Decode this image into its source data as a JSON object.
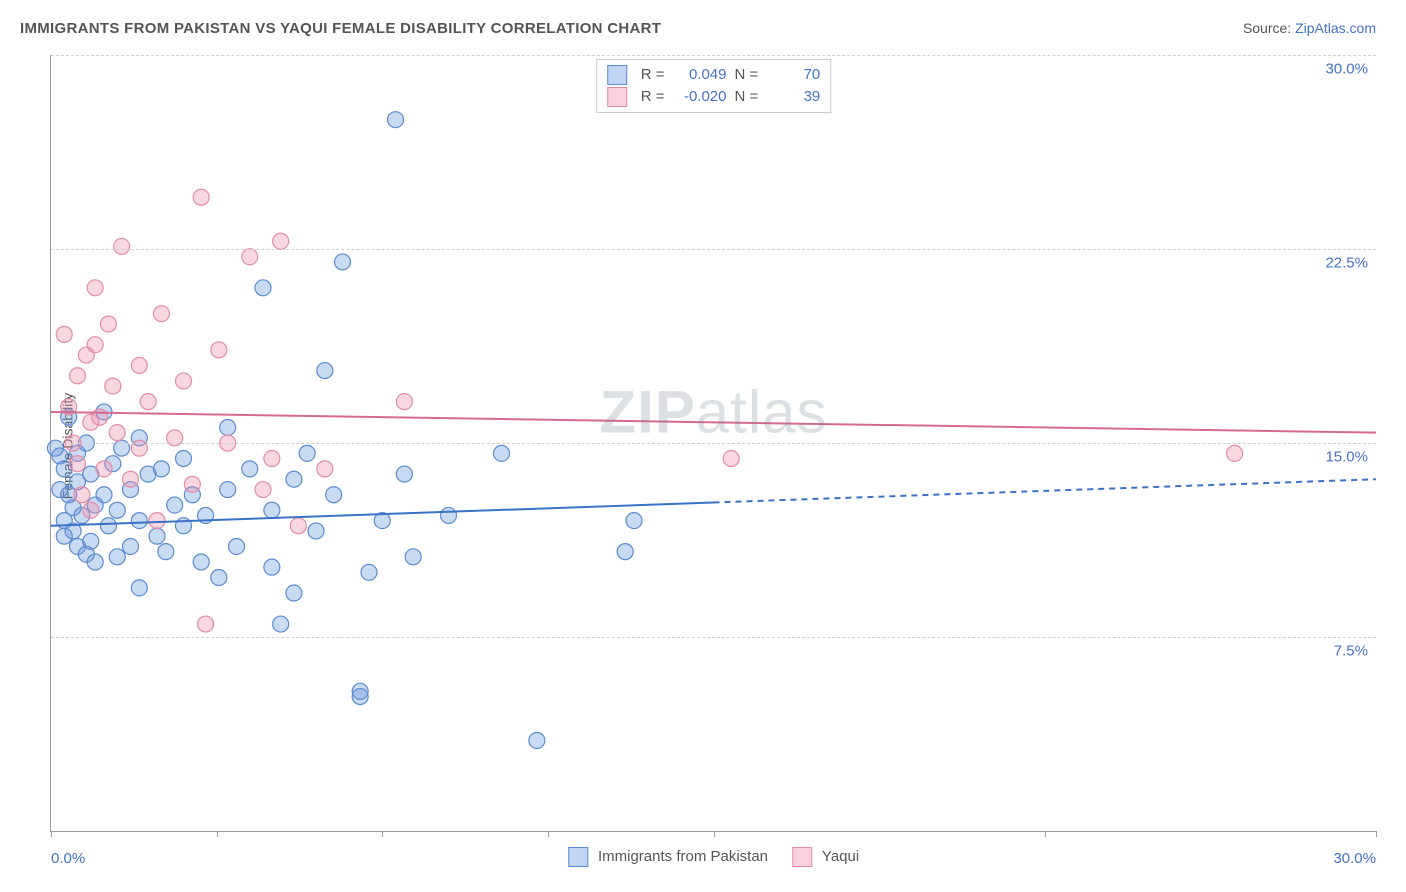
{
  "title": "IMMIGRANTS FROM PAKISTAN VS YAQUI FEMALE DISABILITY CORRELATION CHART",
  "source_label": "Source: ",
  "source_link_text": "ZipAtlas.com",
  "ylabel": "Female Disability",
  "watermark_bold": "ZIP",
  "watermark_rest": "atlas",
  "chart": {
    "type": "scatter",
    "xlim": [
      0,
      30
    ],
    "ylim": [
      0,
      30
    ],
    "x_axis_labels": {
      "left": "0.0%",
      "right": "30.0%"
    },
    "y_gridlines": [
      7.5,
      15.0,
      22.5,
      30.0
    ],
    "y_tick_labels": [
      "7.5%",
      "15.0%",
      "22.5%",
      "30.0%"
    ],
    "x_ticks": [
      0,
      3.75,
      7.5,
      11.25,
      15.0,
      22.5,
      30.0
    ],
    "grid_color": "#d0d0d0",
    "background_color": "#ffffff",
    "axis_color": "#999999",
    "label_color": "#4472c4",
    "marker_radius": 8,
    "marker_stroke_width": 1.2,
    "trend_line_width": 2,
    "series": [
      {
        "name": "Immigrants from Pakistan",
        "legend_name": "Immigrants from Pakistan",
        "R": "0.049",
        "N": "70",
        "fill": "rgba(100,150,220,0.35)",
        "stroke": "#5b8bd0",
        "line_color": "#3972c6",
        "trend_y_start": 11.8,
        "trend_y_end": 13.6,
        "solid_until_x": 15.0,
        "points": [
          [
            0.1,
            14.8
          ],
          [
            0.2,
            14.5
          ],
          [
            0.2,
            13.2
          ],
          [
            0.3,
            14.0
          ],
          [
            0.3,
            12.0
          ],
          [
            0.3,
            11.4
          ],
          [
            0.4,
            16.0
          ],
          [
            0.4,
            13.0
          ],
          [
            0.5,
            12.5
          ],
          [
            0.5,
            11.6
          ],
          [
            0.6,
            14.6
          ],
          [
            0.6,
            13.5
          ],
          [
            0.6,
            11.0
          ],
          [
            0.7,
            12.2
          ],
          [
            0.8,
            15.0
          ],
          [
            0.8,
            10.7
          ],
          [
            0.9,
            13.8
          ],
          [
            0.9,
            11.2
          ],
          [
            1.0,
            12.6
          ],
          [
            1.0,
            10.4
          ],
          [
            1.2,
            16.2
          ],
          [
            1.2,
            13.0
          ],
          [
            1.3,
            11.8
          ],
          [
            1.4,
            14.2
          ],
          [
            1.5,
            12.4
          ],
          [
            1.5,
            10.6
          ],
          [
            1.6,
            14.8
          ],
          [
            1.8,
            13.2
          ],
          [
            1.8,
            11.0
          ],
          [
            2.0,
            15.2
          ],
          [
            2.0,
            12.0
          ],
          [
            2.0,
            9.4
          ],
          [
            2.2,
            13.8
          ],
          [
            2.4,
            11.4
          ],
          [
            2.5,
            14.0
          ],
          [
            2.6,
            10.8
          ],
          [
            2.8,
            12.6
          ],
          [
            3.0,
            14.4
          ],
          [
            3.0,
            11.8
          ],
          [
            3.2,
            13.0
          ],
          [
            3.4,
            10.4
          ],
          [
            3.5,
            12.2
          ],
          [
            3.8,
            9.8
          ],
          [
            4.0,
            15.6
          ],
          [
            4.0,
            13.2
          ],
          [
            4.2,
            11.0
          ],
          [
            4.5,
            14.0
          ],
          [
            4.8,
            21.0
          ],
          [
            5.0,
            12.4
          ],
          [
            5.0,
            10.2
          ],
          [
            5.2,
            8.0
          ],
          [
            5.5,
            13.6
          ],
          [
            5.5,
            9.2
          ],
          [
            5.8,
            14.6
          ],
          [
            6.0,
            11.6
          ],
          [
            6.2,
            17.8
          ],
          [
            6.4,
            13.0
          ],
          [
            6.6,
            22.0
          ],
          [
            7.0,
            5.2
          ],
          [
            7.0,
            5.4
          ],
          [
            7.2,
            10.0
          ],
          [
            7.5,
            12.0
          ],
          [
            7.8,
            27.5
          ],
          [
            8.0,
            13.8
          ],
          [
            8.2,
            10.6
          ],
          [
            9.0,
            12.2
          ],
          [
            10.2,
            14.6
          ],
          [
            11.0,
            3.5
          ],
          [
            13.0,
            10.8
          ],
          [
            13.2,
            12.0
          ]
        ]
      },
      {
        "name": "Yaqui",
        "legend_name": "Yaqui",
        "R": "-0.020",
        "N": "39",
        "fill": "rgba(235,140,170,0.35)",
        "stroke": "#e38ca8",
        "line_color": "#d46a8e",
        "trend_y_start": 16.2,
        "trend_y_end": 15.4,
        "solid_until_x": 30.0,
        "points": [
          [
            0.3,
            19.2
          ],
          [
            0.4,
            16.4
          ],
          [
            0.5,
            15.0
          ],
          [
            0.6,
            17.6
          ],
          [
            0.6,
            14.2
          ],
          [
            0.7,
            13.0
          ],
          [
            0.8,
            18.4
          ],
          [
            0.9,
            15.8
          ],
          [
            0.9,
            12.4
          ],
          [
            1.0,
            21.0
          ],
          [
            1.0,
            18.8
          ],
          [
            1.1,
            16.0
          ],
          [
            1.2,
            14.0
          ],
          [
            1.3,
            19.6
          ],
          [
            1.4,
            17.2
          ],
          [
            1.5,
            15.4
          ],
          [
            1.6,
            22.6
          ],
          [
            1.8,
            13.6
          ],
          [
            2.0,
            18.0
          ],
          [
            2.0,
            14.8
          ],
          [
            2.2,
            16.6
          ],
          [
            2.4,
            12.0
          ],
          [
            2.5,
            20.0
          ],
          [
            2.8,
            15.2
          ],
          [
            3.0,
            17.4
          ],
          [
            3.2,
            13.4
          ],
          [
            3.4,
            24.5
          ],
          [
            3.5,
            8.0
          ],
          [
            3.8,
            18.6
          ],
          [
            4.0,
            15.0
          ],
          [
            4.5,
            22.2
          ],
          [
            4.8,
            13.2
          ],
          [
            5.0,
            14.4
          ],
          [
            5.2,
            22.8
          ],
          [
            5.6,
            11.8
          ],
          [
            6.2,
            14.0
          ],
          [
            8.0,
            16.6
          ],
          [
            15.4,
            14.4
          ],
          [
            26.8,
            14.6
          ]
        ]
      }
    ]
  },
  "top_legend": {
    "R_label": "R =",
    "N_label": "N ="
  },
  "bottom_legend_swatch": {
    "blue_fill": "rgba(100,150,220,0.4)",
    "blue_border": "#5b8bd0",
    "pink_fill": "rgba(235,140,170,0.4)",
    "pink_border": "#e38ca8"
  }
}
